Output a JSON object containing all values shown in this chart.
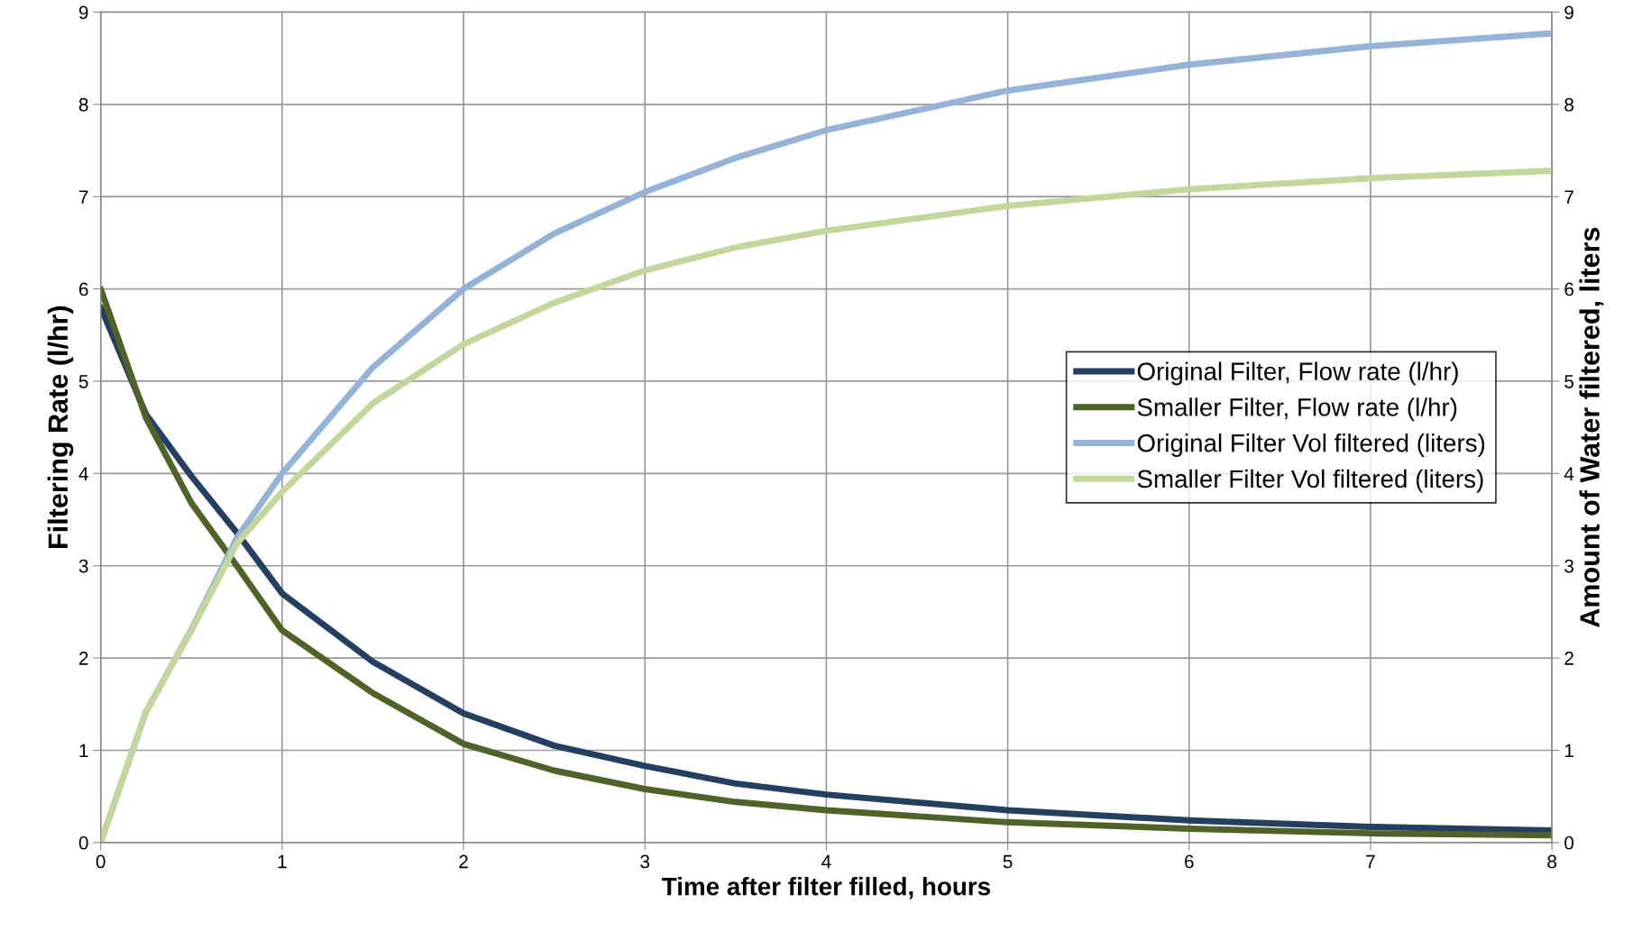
{
  "chart_data": {
    "type": "line",
    "xlabel": "Time after filter filled, hours",
    "ylabel": "Filtering Rate (l/hr)",
    "y2label": "Amount of Water filtered, liters",
    "x": [
      0,
      0.25,
      0.5,
      0.75,
      1,
      1.5,
      2,
      2.5,
      3,
      3.5,
      4,
      5,
      6,
      7,
      8
    ],
    "series": [
      {
        "name": "Original Filter, Flow rate (l/hr)",
        "color": "#243f60",
        "values": [
          5.8,
          4.64,
          3.97,
          3.36,
          2.7,
          1.96,
          1.4,
          1.05,
          0.83,
          0.64,
          0.52,
          0.35,
          0.24,
          0.17,
          0.13
        ]
      },
      {
        "name": "Smaller Filter, Flow rate (l/hr)",
        "color": "#4f6228",
        "values": [
          6.0,
          4.6,
          3.68,
          3.0,
          2.3,
          1.62,
          1.07,
          0.78,
          0.58,
          0.44,
          0.35,
          0.22,
          0.15,
          0.1,
          0.08
        ]
      },
      {
        "name": "Original Filter Vol filtered (liters)",
        "color": "#95b3d7",
        "axis": "y2",
        "values": [
          0,
          1.42,
          2.31,
          3.3,
          4.0,
          5.15,
          6.0,
          6.6,
          7.05,
          7.42,
          7.72,
          8.15,
          8.43,
          8.63,
          8.77
        ]
      },
      {
        "name": "Smaller Filter Vol filtered (liters)",
        "color": "#c3d69b",
        "axis": "y2",
        "values": [
          0,
          1.42,
          2.3,
          3.24,
          3.8,
          4.76,
          5.4,
          5.85,
          6.2,
          6.45,
          6.63,
          6.9,
          7.08,
          7.2,
          7.28
        ]
      }
    ],
    "xlim": [
      0,
      8
    ],
    "xticks": [
      0,
      1,
      2,
      3,
      4,
      5,
      6,
      7,
      8
    ],
    "ylim": [
      0,
      9
    ],
    "yticks": [
      0,
      1,
      2,
      3,
      4,
      5,
      6,
      7,
      8,
      9
    ],
    "y2lim": [
      0,
      9
    ],
    "y2ticks": [
      0,
      1,
      2,
      3,
      4,
      5,
      6,
      7,
      8,
      9
    ],
    "grid": true,
    "legend": "right",
    "line_style": "solid",
    "marker": "none"
  }
}
